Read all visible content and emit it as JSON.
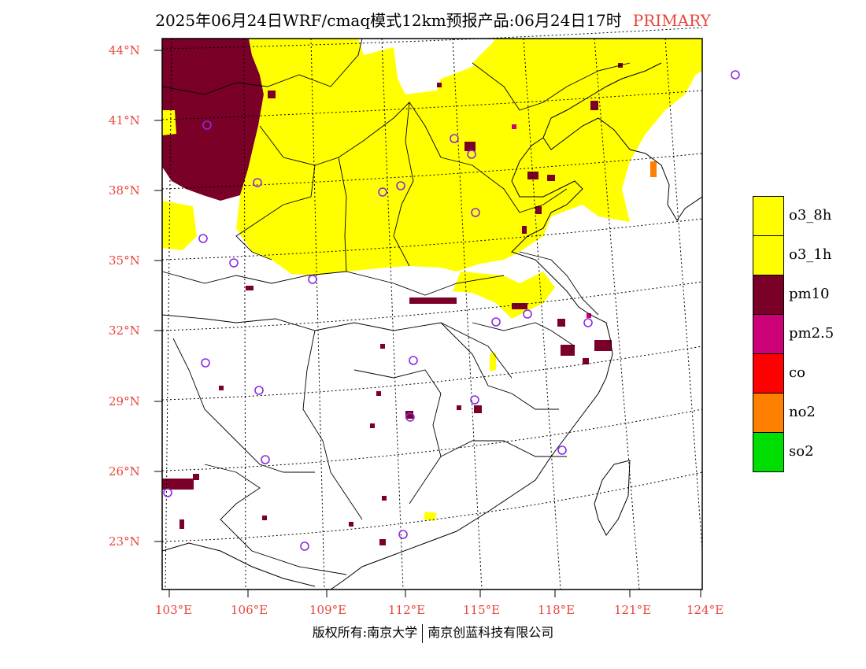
{
  "title": {
    "main": "2025年06月24日WRF/cmaq模式12km预报产品:06月24日17时",
    "tag": "PRIMARY",
    "tag_color": "#e8463c"
  },
  "axes": {
    "lat_labels": [
      "44°N",
      "41°N",
      "38°N",
      "35°N",
      "32°N",
      "29°N",
      "26°N",
      "23°N"
    ],
    "lon_labels": [
      "103°E",
      "106°E",
      "109°E",
      "112°E",
      "115°E",
      "118°E",
      "121°E",
      "124°E"
    ],
    "label_color": "#e8463c"
  },
  "legend": [
    {
      "label": "o3_8h",
      "color": "#ffff00"
    },
    {
      "label": "o3_1h",
      "color": "#ffff00"
    },
    {
      "label": "pm10",
      "color": "#7a0028"
    },
    {
      "label": "pm2.5",
      "color": "#cc0077"
    },
    {
      "label": "co",
      "color": "#ff0000"
    },
    {
      "label": "no2",
      "color": "#ff7f00"
    },
    {
      "label": "so2",
      "color": "#00dd00"
    }
  ],
  "copyright": {
    "left": "版权所有:南京大学",
    "right": "南京创蓝科技有限公司"
  }
}
